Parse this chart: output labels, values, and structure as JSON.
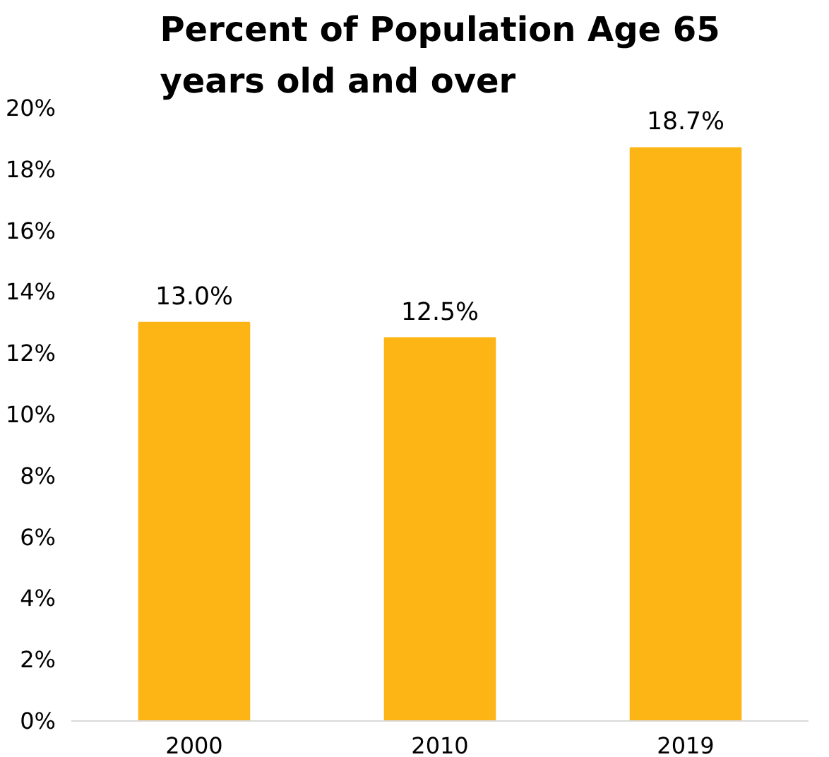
{
  "chart_data": {
    "type": "bar",
    "title": "Percent of Population Age 65 years old and over",
    "categories": [
      "2000",
      "2010",
      "2019"
    ],
    "values": [
      13.0,
      12.5,
      18.7
    ],
    "color": "#fdb515",
    "value_labels": [
      "13.0%",
      "12.5%",
      "18.7%"
    ],
    "ylim": [
      0,
      20
    ],
    "yticks": [
      {
        "value": 0,
        "label": "0%"
      },
      {
        "value": 2,
        "label": "2%"
      },
      {
        "value": 4,
        "label": "4%"
      },
      {
        "value": 6,
        "label": "6%"
      },
      {
        "value": 8,
        "label": "8%"
      },
      {
        "value": 10,
        "label": "10%"
      },
      {
        "value": 12,
        "label": "12%"
      },
      {
        "value": 14,
        "label": "14%"
      },
      {
        "value": 16,
        "label": "16%"
      },
      {
        "value": 18,
        "label": "18%"
      },
      {
        "value": 20,
        "label": "20%"
      }
    ]
  }
}
